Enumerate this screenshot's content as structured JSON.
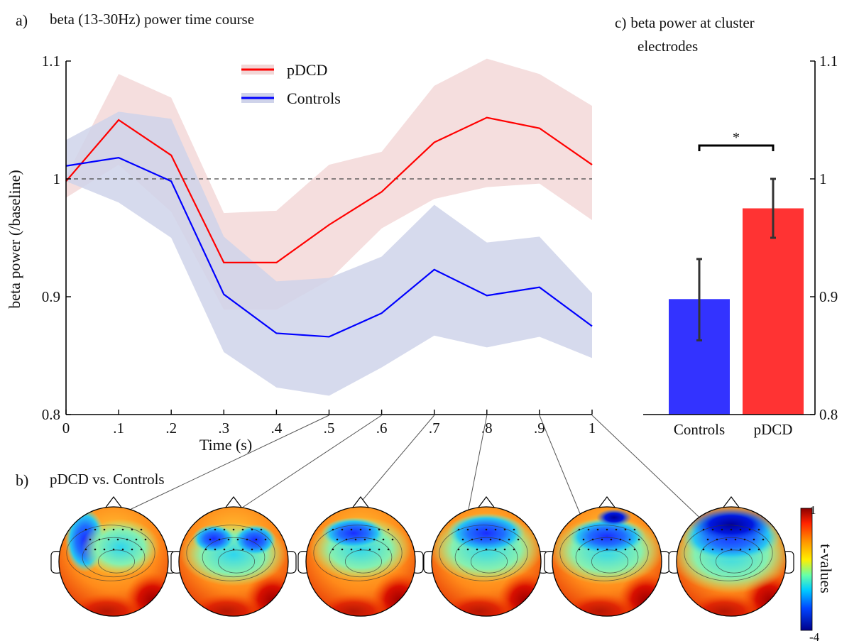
{
  "panels": {
    "a": {
      "letter": "a)",
      "title": "beta (13-30Hz) power time course"
    },
    "b": {
      "letter": "b)",
      "title": "pDCD vs. Controls"
    },
    "c": {
      "letter": "c)",
      "title_line1": "beta power at cluster",
      "title_line2": "electrodes"
    }
  },
  "chart_data": [
    {
      "type": "line",
      "title": "beta (13-30Hz) power time course",
      "xlabel": "Time (s)",
      "ylabel": "beta power (/baseline)",
      "xlim": [
        0,
        1
      ],
      "ylim": [
        0.8,
        1.1
      ],
      "x": [
        0,
        0.1,
        0.2,
        0.3,
        0.4,
        0.5,
        0.6,
        0.7,
        0.8,
        0.9,
        1.0
      ],
      "x_tick_labels": [
        "0",
        ".1",
        ".2",
        ".3",
        ".4",
        ".5",
        ".6",
        ".7",
        ".8",
        ".9",
        "1"
      ],
      "y_ticks": [
        0.8,
        0.9,
        1.0,
        1.1
      ],
      "y_tick_labels": [
        "0.8",
        "0.9",
        "1",
        "1.1"
      ],
      "reference_line": 1.0,
      "legend_position": "top-center",
      "series": [
        {
          "name": "pDCD",
          "color": "#ff0000",
          "band_color": "#f2d6d6",
          "values": [
            0.998,
            1.05,
            1.02,
            0.929,
            0.929,
            0.961,
            0.989,
            1.031,
            1.052,
            1.043,
            1.012
          ],
          "upper": [
            1.002,
            1.089,
            1.069,
            0.971,
            0.973,
            1.012,
            1.023,
            1.079,
            1.102,
            1.089,
            1.062
          ],
          "lower": [
            0.984,
            1.012,
            0.972,
            0.889,
            0.889,
            0.914,
            0.958,
            0.983,
            0.993,
            0.996,
            0.965
          ]
        },
        {
          "name": "Controls",
          "color": "#0000ff",
          "band_color": "#cfd3ea",
          "values": [
            1.011,
            1.018,
            0.998,
            0.902,
            0.869,
            0.866,
            0.886,
            0.923,
            0.901,
            0.908,
            0.875
          ],
          "upper": [
            1.033,
            1.057,
            1.051,
            0.951,
            0.913,
            0.916,
            0.934,
            0.978,
            0.946,
            0.951,
            0.903
          ],
          "lower": [
            0.998,
            0.98,
            0.95,
            0.853,
            0.823,
            0.816,
            0.84,
            0.867,
            0.857,
            0.866,
            0.848
          ]
        }
      ]
    },
    {
      "type": "bar",
      "title": "beta power at cluster electrodes",
      "categories": [
        "Controls",
        "pDCD"
      ],
      "values": [
        0.898,
        0.975
      ],
      "error_low": [
        0.863,
        0.95
      ],
      "error_high": [
        0.932,
        1.0
      ],
      "colors": [
        "#3333ff",
        "#ff3333"
      ],
      "ylim": [
        0.8,
        1.1
      ],
      "y_ticks": [
        0.8,
        0.9,
        1.0,
        1.1
      ],
      "y_tick_labels": [
        "0.8",
        "0.9",
        "1",
        "1.1"
      ],
      "y_axis_side": "right",
      "significance_label": "*"
    },
    {
      "type": "heatmap",
      "title": "pDCD vs. Controls",
      "topomap_times": [
        ".5",
        ".6",
        ".7",
        ".8",
        ".9",
        "1"
      ],
      "colorbar_label": "t-values",
      "colorbar_range": [
        -4,
        1
      ],
      "colorbar_max_label": "1",
      "colorbar_min_label": "-4"
    }
  ]
}
